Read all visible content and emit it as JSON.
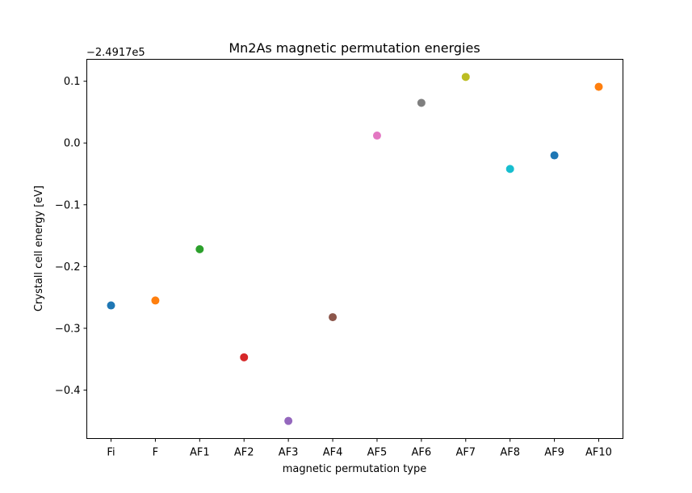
{
  "chart_data": {
    "type": "scatter",
    "title": "Mn2As magnetic permutation energies",
    "xlabel": "magnetic permutation type",
    "ylabel": "Crystall cell energy [eV]",
    "offset_label": "−2.4917e5",
    "categories": [
      "Fi",
      "F",
      "AF1",
      "AF2",
      "AF3",
      "AF4",
      "AF5",
      "AF6",
      "AF7",
      "AF8",
      "AF9",
      "AF10"
    ],
    "values": [
      -0.263,
      -0.255,
      -0.172,
      -0.347,
      -0.45,
      -0.282,
      0.012,
      0.065,
      0.107,
      -0.042,
      -0.02,
      0.091
    ],
    "colors": [
      "#1f77b4",
      "#ff7f0e",
      "#2ca02c",
      "#d62728",
      "#9467bd",
      "#8c564b",
      "#e377c2",
      "#7f7f7f",
      "#bcbd22",
      "#17becf",
      "#1f77b4",
      "#ff7f0e"
    ],
    "yticks": [
      0.1,
      0.0,
      -0.1,
      -0.2,
      -0.3,
      -0.4
    ],
    "ytick_labels": [
      "0.1",
      "0.0",
      "−0.1",
      "−0.2",
      "−0.3",
      "−0.4"
    ],
    "ylim": [
      -0.4785,
      0.1355
    ],
    "grid": false,
    "legend": "none"
  }
}
